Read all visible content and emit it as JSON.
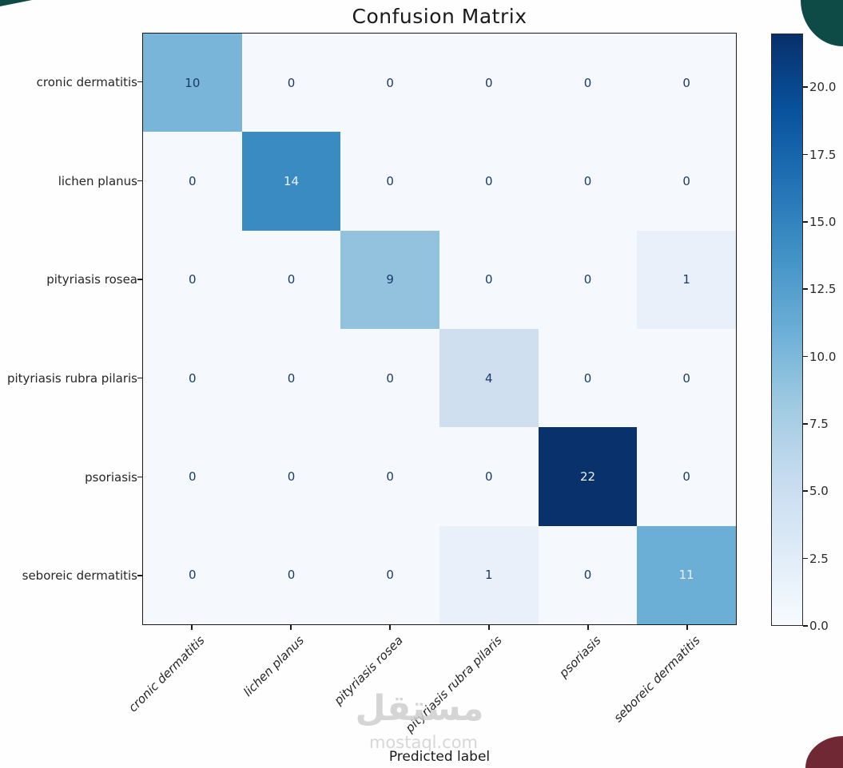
{
  "chart_data": {
    "type": "heatmap",
    "title": "Confusion Matrix",
    "xlabel": "Predicted label",
    "categories": [
      "cronic dermatitis",
      "lichen planus",
      "pityriasis rosea",
      "pityriasis rubra pilaris",
      "psoriasis",
      "seboreic dermatitis"
    ],
    "matrix": [
      [
        10,
        0,
        0,
        0,
        0,
        0
      ],
      [
        0,
        14,
        0,
        0,
        0,
        0
      ],
      [
        0,
        0,
        9,
        0,
        0,
        1
      ],
      [
        0,
        0,
        0,
        4,
        0,
        0
      ],
      [
        0,
        0,
        0,
        0,
        22,
        0
      ],
      [
        0,
        0,
        0,
        1,
        0,
        11
      ]
    ],
    "colormap": "Blues",
    "vmin": 0,
    "vmax": 22,
    "colorbar_ticks": [
      "0.0",
      "2.5",
      "5.0",
      "7.5",
      "10.0",
      "12.5",
      "15.0",
      "17.5",
      "20.0"
    ],
    "colorbar_gradient_bottom_to_top": [
      "#f7fbff",
      "#deebf7",
      "#c6dbef",
      "#9ecae1",
      "#6baed6",
      "#4292c6",
      "#2171b5",
      "#08519c",
      "#08306b"
    ],
    "value_colors": {
      "0": "#f5f9fd",
      "1": "#e9f0f9",
      "4": "#cfdfef",
      "9": "#92c2de",
      "10": "#79b5d9",
      "11": "#6baed6",
      "14": "#3a8bc2",
      "22": "#09316b"
    },
    "cell_text_dark": "#1b3a66",
    "cell_text_light": "#eaf1f8",
    "white_text_min_value": 11
  },
  "watermark": {
    "arabic": "مستقل",
    "domain": "mostaql.com"
  },
  "decorations": {
    "corner_teal": "#0e4a46",
    "corner_maroon": "#6f2834"
  }
}
